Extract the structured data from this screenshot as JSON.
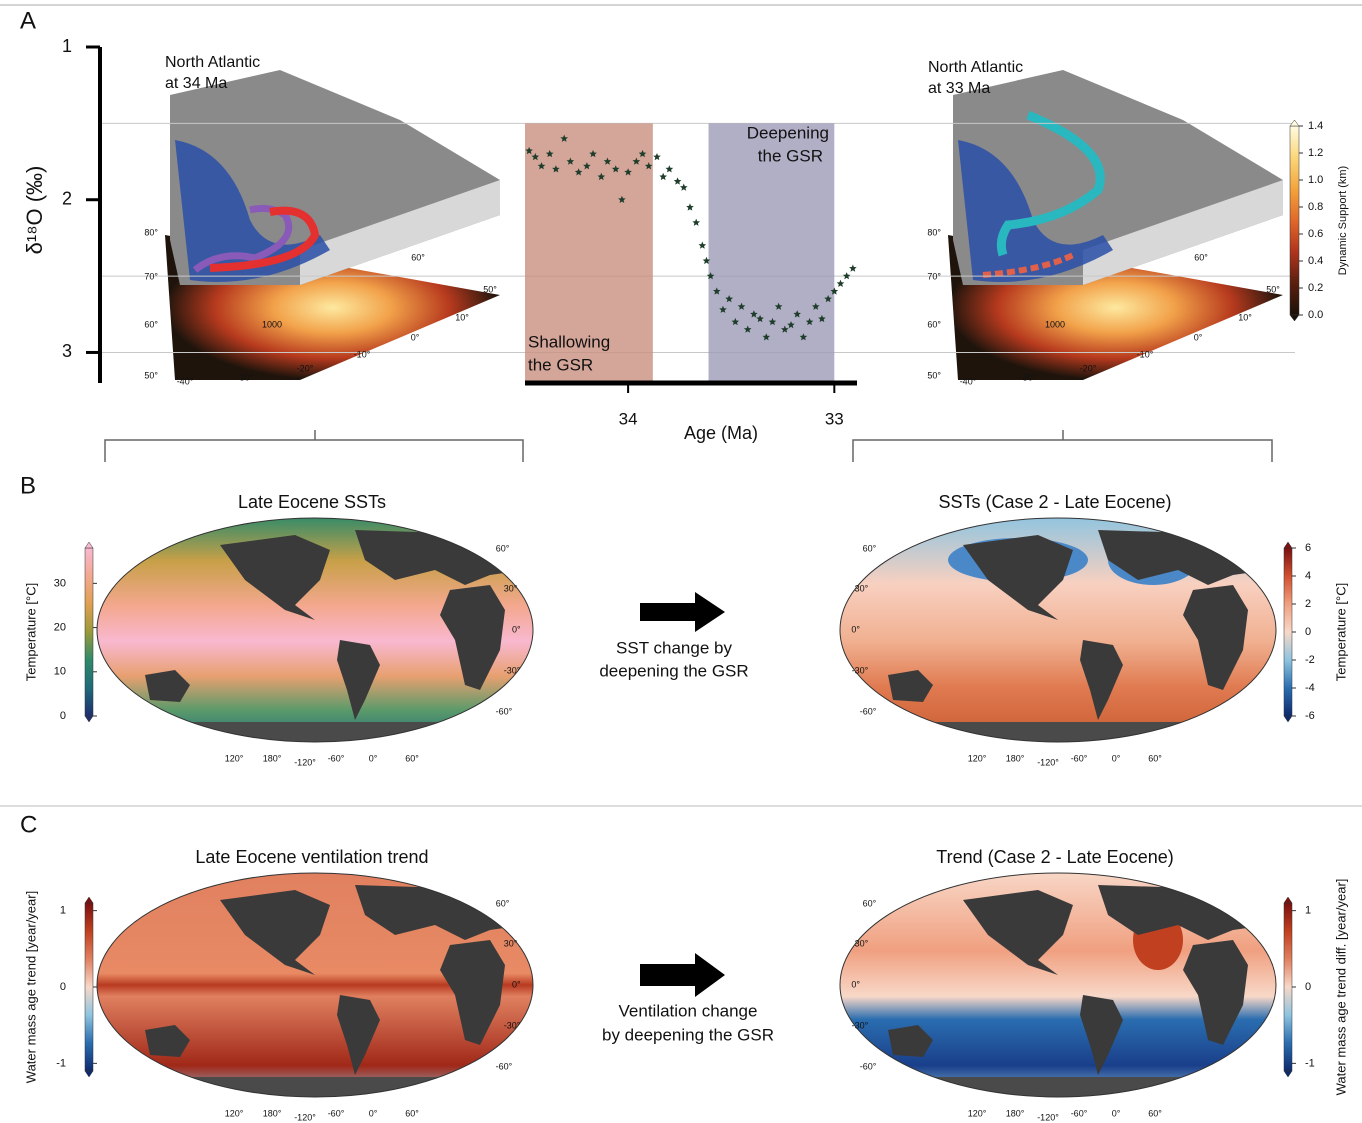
{
  "panel_labels": [
    "A",
    "B",
    "C"
  ],
  "chart_data": {
    "type": "scatter",
    "ylabel": "δ¹⁸O (‰)",
    "xlabel": "Age (Ma)",
    "xlim": [
      34.5,
      32.89
    ],
    "xticks": [
      34,
      33
    ],
    "ylim": [
      1,
      3.2
    ],
    "yticks": [
      1,
      2,
      3
    ],
    "ygrid": [
      1.5,
      2.5,
      3
    ],
    "color": "#1f3d2b",
    "x": [
      34.48,
      34.45,
      34.42,
      34.38,
      34.35,
      34.31,
      34.28,
      34.24,
      34.2,
      34.17,
      34.13,
      34.1,
      34.06,
      34.03,
      34.0,
      33.96,
      33.93,
      33.9,
      33.86,
      33.83,
      33.8,
      33.76,
      33.73,
      33.7,
      33.67,
      33.64,
      33.62,
      33.6,
      33.57,
      33.54,
      33.51,
      33.48,
      33.45,
      33.42,
      33.39,
      33.36,
      33.33,
      33.3,
      33.27,
      33.24,
      33.21,
      33.18,
      33.15,
      33.12,
      33.09,
      33.06,
      33.03,
      33.0,
      32.97,
      32.94,
      32.91
    ],
    "values": [
      1.68,
      1.72,
      1.78,
      1.7,
      1.8,
      1.6,
      1.75,
      1.82,
      1.78,
      1.7,
      1.85,
      1.75,
      1.8,
      2.0,
      1.82,
      1.75,
      1.7,
      1.78,
      1.72,
      1.85,
      1.8,
      1.88,
      1.92,
      2.05,
      2.15,
      2.3,
      2.4,
      2.5,
      2.6,
      2.72,
      2.65,
      2.8,
      2.7,
      2.85,
      2.75,
      2.78,
      2.9,
      2.8,
      2.7,
      2.85,
      2.82,
      2.75,
      2.9,
      2.8,
      2.7,
      2.78,
      2.65,
      2.6,
      2.55,
      2.5,
      2.45
    ],
    "spans": [
      {
        "lines": [
          "Shallowing",
          "the GSR"
        ],
        "x": [
          34.5,
          33.88
        ],
        "y": [
          1.5,
          3.2
        ],
        "color": "#c98f7f",
        "text_color": "#9b2a1e"
      },
      {
        "lines": [
          "Deepening",
          "the GSR"
        ],
        "x": [
          33.61,
          33.0
        ],
        "y": [
          1.5,
          3.2
        ],
        "color": "#9e9bb8",
        "text_color": "#2a2a6e"
      }
    ]
  },
  "insets": [
    {
      "title": [
        "North Atlantic",
        "at 34 Ma"
      ],
      "lat_labels": [
        "80°",
        "70°",
        "60°",
        "50°"
      ],
      "lon_labels": [
        "-40°",
        "-30°",
        "-20°",
        "-10°",
        "0°",
        "10°",
        "50°",
        "60°"
      ],
      "contour_label": "1000"
    },
    {
      "title": [
        "North Atlantic",
        "at 33 Ma"
      ],
      "lat_labels": [
        "80°",
        "70°",
        "60°",
        "50°"
      ],
      "lon_labels": [
        "-40°",
        "-30°",
        "-20°",
        "-10°",
        "0°",
        "10°",
        "50°",
        "60°"
      ],
      "contour_label": "1000"
    }
  ],
  "dynamic_colorbar": {
    "label": "Dynamic Support (km)",
    "lim": [
      0,
      1.4
    ],
    "ticks": [
      {
        "value": 0,
        "label": "0.0"
      },
      0.2,
      0.4,
      0.6,
      0.8,
      {
        "value": 1,
        "label": "1.0"
      },
      1.2,
      1.4
    ],
    "colors": [
      "#1a1208",
      "#5a1e0e",
      "#b0341c",
      "#e0682a",
      "#f3a43c",
      "#fbd77a",
      "#fffbe0"
    ]
  },
  "maps": [
    {
      "title": "Late Eocene SSTs",
      "lat_labels": [
        "60°",
        "30°",
        "0°",
        "-30°",
        "-60°"
      ],
      "lon_labels": [
        "120°",
        "180°",
        "-120°",
        "-60°",
        "0°",
        "60°"
      ],
      "colorbar": {
        "label": "Temperature [°C]",
        "lim": [
          0,
          38
        ],
        "ticks": [
          0,
          10,
          20,
          30
        ],
        "colors": [
          "#1d2f6e",
          "#1f6a7a",
          "#2e8a6a",
          "#9a9a3a",
          "#e0a050",
          "#f4a890",
          "#f8b8d0"
        ]
      }
    },
    {
      "title": "SSTs (Case 2 - Late Eocene)",
      "lat_labels": [
        "60°",
        "30°",
        "0°",
        "-30°",
        "-60°"
      ],
      "lon_labels": [
        "120°",
        "180°",
        "-120°",
        "-60°",
        "0°",
        "60°"
      ],
      "colorbar": {
        "label": "Temperature [°C]",
        "lim": [
          -6,
          6
        ],
        "ticks": [
          6,
          4,
          2,
          0,
          -2,
          -4,
          -6
        ],
        "colors": [
          "#0e2a6e",
          "#2a6db0",
          "#8ec4e0",
          "#f8d8c8",
          "#f0a080",
          "#d05030",
          "#7a1010"
        ]
      }
    },
    {
      "title": "Late Eocene ventilation trend",
      "lat_labels": [
        "60°",
        "30°",
        "0°",
        "-30°",
        "-60°"
      ],
      "lon_labels": [
        "120°",
        "180°",
        "-120°",
        "-60°",
        "0°",
        "60°"
      ],
      "colorbar": {
        "label": "Water mass age trend [year/year]",
        "lim": [
          -1.1,
          1.1
        ],
        "ticks": [
          1,
          0,
          -1
        ],
        "colors": [
          "#0e2a6e",
          "#2a6db0",
          "#8ec4e0",
          "#f8d8c8",
          "#e08060",
          "#c04020",
          "#7a1010"
        ]
      }
    },
    {
      "title": "Trend (Case 2 - Late Eocene)",
      "lat_labels": [
        "60°",
        "30°",
        "0°",
        "-30°",
        "-60°"
      ],
      "lon_labels": [
        "120°",
        "180°",
        "-120°",
        "-60°",
        "0°",
        "60°"
      ],
      "colorbar": {
        "label": "Water mass age trend diff. [year/year]",
        "lim": [
          -1.1,
          1.1
        ],
        "ticks": [
          1,
          0,
          -1
        ],
        "colors": [
          "#0e2a6e",
          "#2a6db0",
          "#8ec4e0",
          "#f8d8c8",
          "#e08060",
          "#c04020",
          "#7a1010"
        ]
      }
    }
  ],
  "transitions": [
    [
      "SST change by",
      "deepening the GSR"
    ],
    [
      "Ventilation change",
      "by deepening the GSR"
    ]
  ]
}
